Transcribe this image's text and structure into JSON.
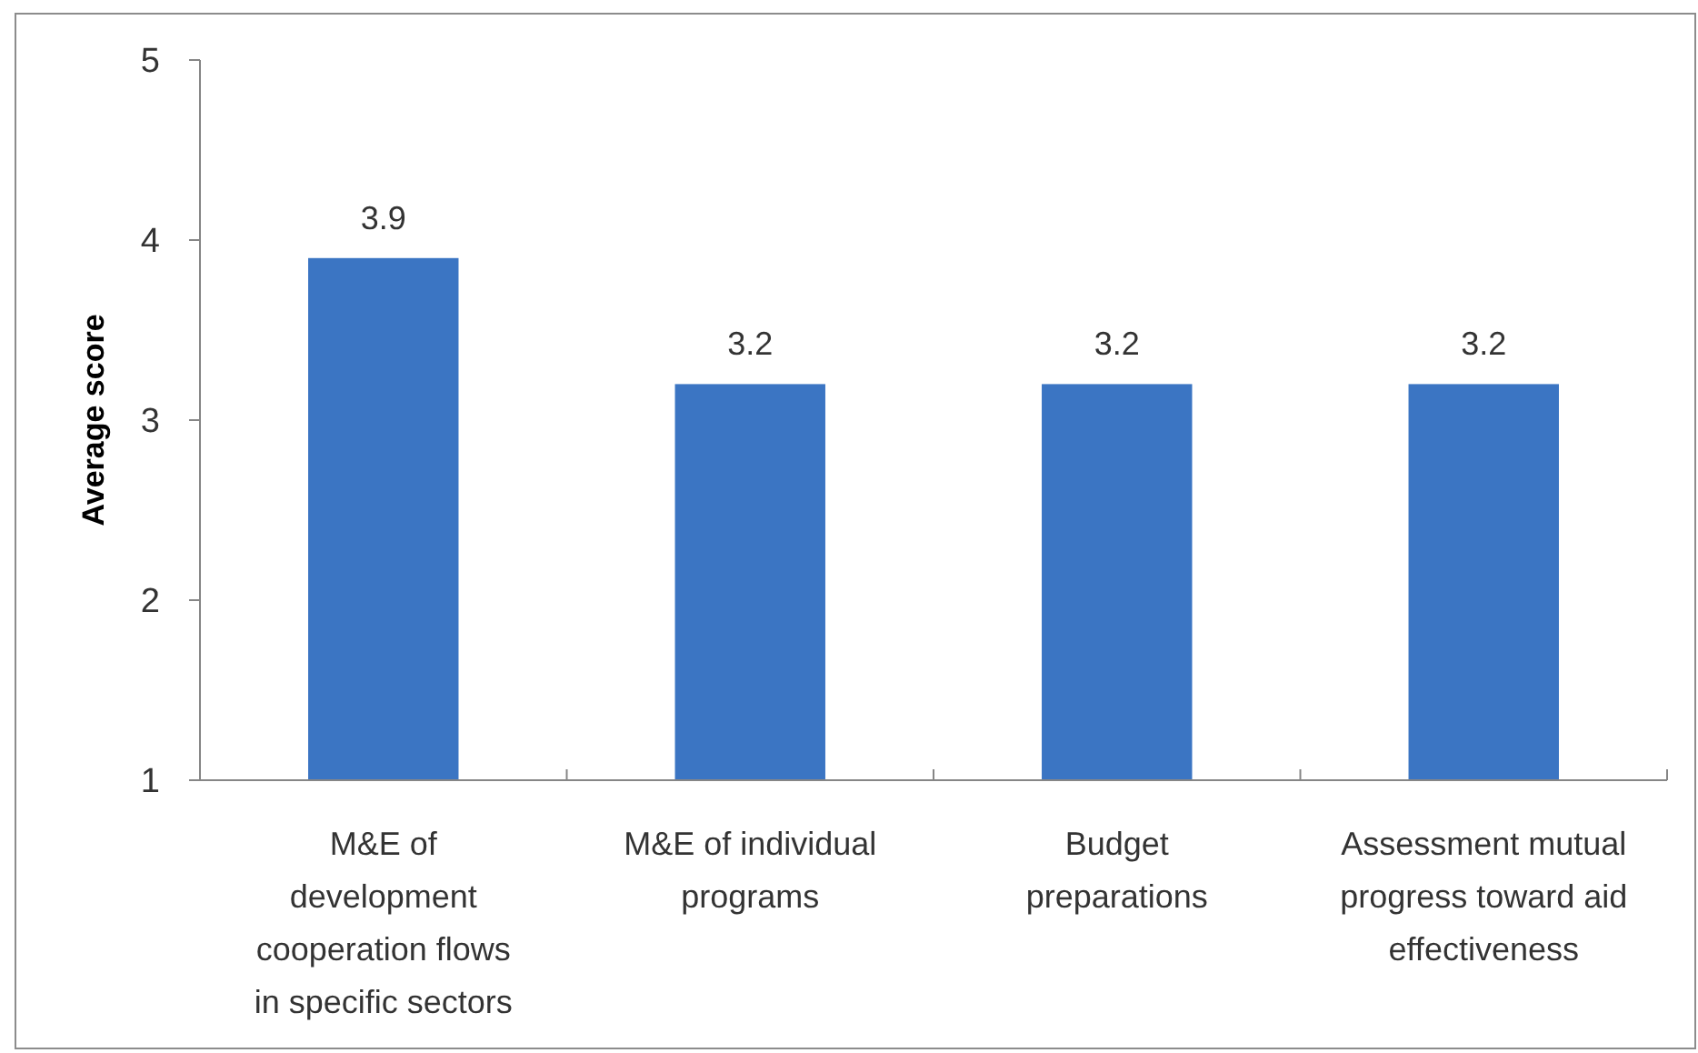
{
  "chart_data": {
    "type": "bar",
    "ylabel": "Average score",
    "categories": [
      "M&E of development cooperation flows in specific sectors",
      "M&E of individual programs",
      "Budget preparations",
      "Assessment mutual progress toward aid effectiveness"
    ],
    "values": [
      3.9,
      3.2,
      3.2,
      3.2
    ],
    "color": "#3b75c3",
    "ylim": [
      1,
      5
    ],
    "yticks": [
      1,
      2,
      3,
      4,
      5
    ],
    "data_labels": true
  }
}
